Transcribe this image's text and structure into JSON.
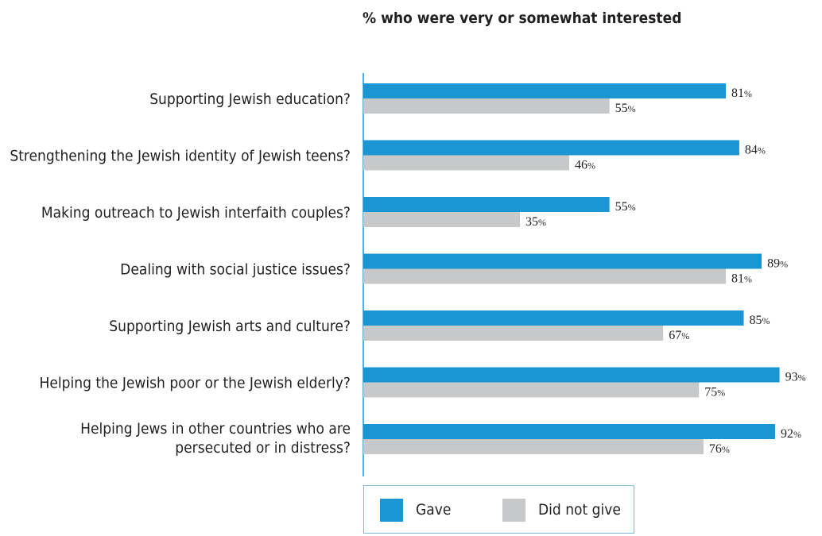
{
  "chart_data": {
    "type": "bar",
    "orientation": "horizontal",
    "title": "% who were very or somewhat interested",
    "categories": [
      [
        "Supporting Jewish education?"
      ],
      [
        "Strengthening the Jewish identity of Jewish teens?"
      ],
      [
        "Making outreach to Jewish interfaith couples?"
      ],
      [
        "Dealing with social justice issues?"
      ],
      [
        "Supporting Jewish arts and culture?"
      ],
      [
        "Helping the Jewish poor or the Jewish elderly?"
      ],
      [
        "Helping Jews in other countries who are",
        "persecuted or in distress?"
      ]
    ],
    "series": [
      {
        "name": "Gave",
        "color": "#1b95d3",
        "values": [
          81,
          84,
          55,
          89,
          85,
          93,
          92
        ]
      },
      {
        "name": "Did not give",
        "color": "#c7c8ca",
        "values": [
          55,
          46,
          35,
          81,
          67,
          75,
          76
        ]
      }
    ],
    "value_suffix": "%",
    "xlim": [
      0,
      100
    ],
    "grid": false,
    "legend": "bottom"
  }
}
